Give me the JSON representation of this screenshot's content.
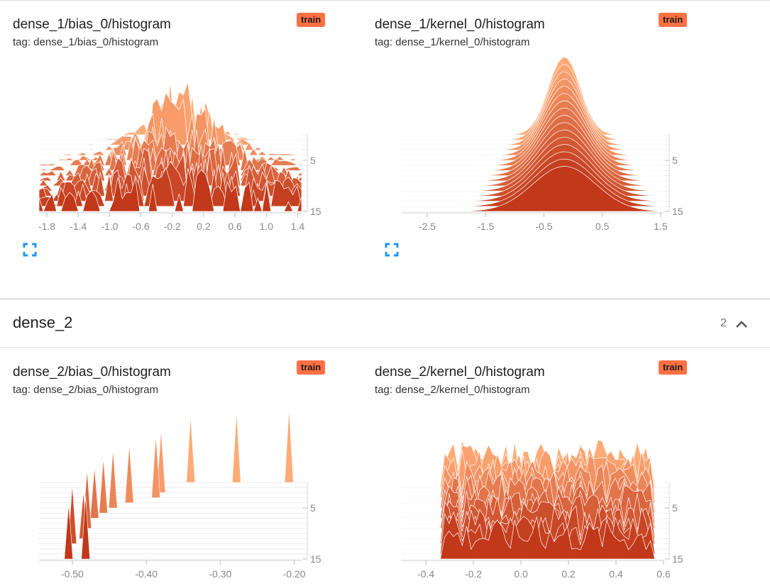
{
  "colors": {
    "accent": "#ff7043",
    "expand_icon": "#2196f3",
    "low": "#ffab76",
    "high": "#c1381a"
  },
  "cards": [
    {
      "title": "dense_1/bias_0/histogram",
      "tag": "tag: dense_1/bias_0/histogram",
      "run": "train"
    },
    {
      "title": "dense_1/kernel_0/histogram",
      "tag": "tag: dense_1/kernel_0/histogram",
      "run": "train"
    },
    {
      "title": "dense_2/bias_0/histogram",
      "tag": "tag: dense_2/bias_0/histogram",
      "run": "train"
    },
    {
      "title": "dense_2/kernel_0/histogram",
      "tag": "tag: dense_2/kernel_0/histogram",
      "run": "train"
    }
  ],
  "group": {
    "name": "dense_2",
    "count": "2",
    "collapse_icon": "chevron-up-icon"
  },
  "chart_data": [
    {
      "type": "histogram-offset",
      "xlim": [
        -1.9,
        1.45
      ],
      "x_ticks": [
        "-1.8",
        "-1.4",
        "-1.0",
        "-0.6",
        "-0.2",
        "0.2",
        "0.6",
        "1.0",
        "1.4"
      ],
      "x_tick_values": [
        -1.8,
        -1.4,
        -1.0,
        -0.6,
        -0.2,
        0.2,
        0.6,
        1.0,
        1.4
      ],
      "y_ticks": [
        "5",
        "15"
      ],
      "y_tick_values": [
        5,
        15
      ],
      "steps": 16,
      "shape": "spiky",
      "peaks": [
        {
          "center": -0.1,
          "spread": 0.25,
          "height": 1.0
        }
      ]
    },
    {
      "type": "histogram-offset",
      "xlim": [
        -2.95,
        1.55
      ],
      "x_ticks": [
        "-2.5",
        "-1.5",
        "-0.5",
        "0.5",
        "1.5"
      ],
      "x_tick_values": [
        -2.5,
        -1.5,
        -0.5,
        0.5,
        1.5
      ],
      "y_ticks": [
        "5",
        "15"
      ],
      "y_tick_values": [
        5,
        15
      ],
      "steps": 16,
      "shape": "smooth",
      "peaks": [
        {
          "center": -0.15,
          "spread": 0.3,
          "height": 1.0
        }
      ]
    },
    {
      "type": "histogram-offset",
      "xlim": [
        -0.545,
        -0.19
      ],
      "x_ticks": [
        "-0.50",
        "-0.40",
        "-0.30",
        "-0.20"
      ],
      "x_tick_values": [
        -0.5,
        -0.4,
        -0.3,
        -0.2
      ],
      "y_ticks": [
        "5",
        "15"
      ],
      "y_tick_values": [
        5,
        15
      ],
      "steps": 16,
      "shape": "spikes",
      "spikes": [
        {
          "x": -0.207,
          "step": 0,
          "height": 0.95
        },
        {
          "x": -0.278,
          "step": 0,
          "height": 0.9
        },
        {
          "x": -0.34,
          "step": 0,
          "height": 0.85
        },
        {
          "x": -0.38,
          "step": 2,
          "height": 0.8
        },
        {
          "x": -0.387,
          "step": 3,
          "height": 0.8
        },
        {
          "x": -0.423,
          "step": 4,
          "height": 0.75
        },
        {
          "x": -0.445,
          "step": 5,
          "height": 0.75
        },
        {
          "x": -0.458,
          "step": 6,
          "height": 0.7
        },
        {
          "x": -0.47,
          "step": 7,
          "height": 0.65
        },
        {
          "x": -0.48,
          "step": 9,
          "height": 0.75
        },
        {
          "x": -0.485,
          "step": 11,
          "height": 0.6
        },
        {
          "x": -0.5,
          "step": 12,
          "height": 0.75
        },
        {
          "x": -0.505,
          "step": 15,
          "height": 0.7
        },
        {
          "x": -0.482,
          "step": 15,
          "height": 0.8
        }
      ]
    },
    {
      "type": "histogram-offset",
      "xlim": [
        -0.505,
        0.6
      ],
      "x_ticks": [
        "-0.4",
        "-0.2",
        "0.0",
        "0.2",
        "0.4",
        "0.6"
      ],
      "x_tick_values": [
        -0.4,
        -0.2,
        0.0,
        0.2,
        0.4,
        0.6
      ],
      "y_ticks": [
        "5",
        "15"
      ],
      "y_tick_values": [
        5,
        15
      ],
      "steps": 16,
      "shape": "noisy",
      "support": [
        -0.33,
        0.55
      ]
    }
  ]
}
